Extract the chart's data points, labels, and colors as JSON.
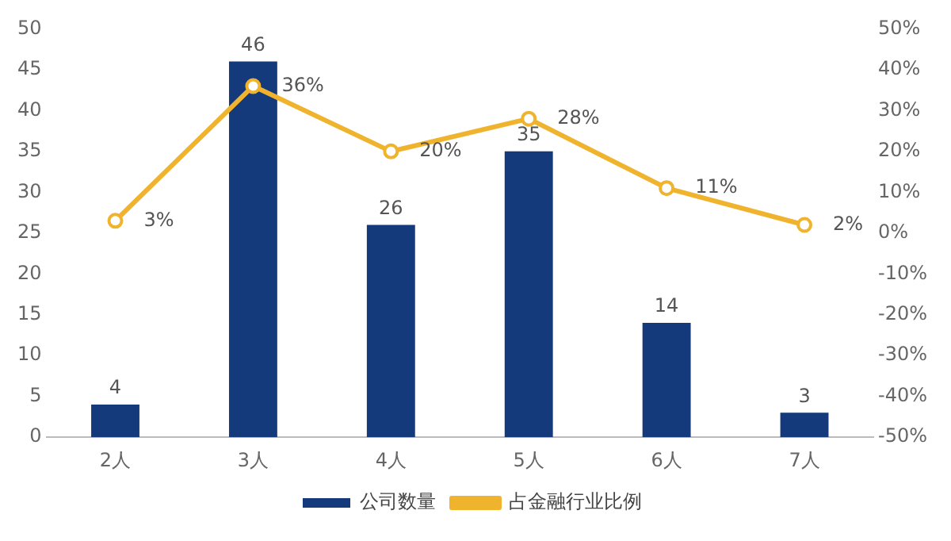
{
  "chart_data": {
    "type": "bar",
    "categories": [
      "2人",
      "3人",
      "4人",
      "5人",
      "6人",
      "7人"
    ],
    "series": [
      {
        "name": "公司数量",
        "color": "#143a7b",
        "values": [
          4,
          46,
          26,
          35,
          14,
          3
        ],
        "value_labels": [
          "4",
          "46",
          "26",
          "35",
          "14",
          "3"
        ]
      },
      {
        "name": "占金融行业比例",
        "type": "line",
        "axis": "y2",
        "color": "#f0b32d",
        "values": [
          3,
          36,
          20,
          28,
          11,
          2
        ],
        "value_labels": [
          "3%",
          "36%",
          "20%",
          "28%",
          "11%",
          "2%"
        ]
      }
    ],
    "ylim": [
      0,
      50
    ],
    "yticks": [
      0,
      5,
      10,
      15,
      20,
      25,
      30,
      35,
      40,
      45,
      50
    ],
    "y2lim": [
      -50,
      50
    ],
    "y2ticks": [
      {
        "value": -50,
        "label": "-50%"
      },
      {
        "value": -40,
        "label": "-40%"
      },
      {
        "value": -30,
        "label": "-30%"
      },
      {
        "value": -20,
        "label": "-20%"
      },
      {
        "value": -10,
        "label": "-10%"
      },
      {
        "value": 0,
        "label": "0%"
      },
      {
        "value": 10,
        "label": "10%"
      },
      {
        "value": 20,
        "label": "20%"
      },
      {
        "value": 30,
        "label": "30%"
      },
      {
        "value": 40,
        "label": "40%"
      },
      {
        "value": 50,
        "label": "50%"
      }
    ],
    "legend": "bottom",
    "marker": "circle",
    "grid": false
  }
}
